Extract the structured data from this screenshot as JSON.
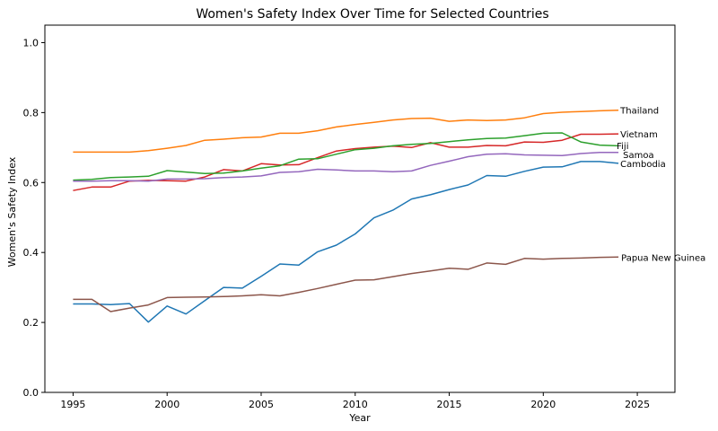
{
  "chart_data": {
    "type": "line",
    "title": "Women's Safety Index Over Time for Selected Countries",
    "xlabel": "Year",
    "ylabel": "Women's Safety Index",
    "xlim": [
      1993.5,
      2027
    ],
    "ylim": [
      0,
      1.05
    ],
    "xticks": [
      1995,
      2000,
      2005,
      2010,
      2015,
      2020,
      2025
    ],
    "yticks": [
      0.0,
      0.2,
      0.4,
      0.6,
      0.8,
      1.0
    ],
    "ytick_labels": [
      "0.0",
      "0.2",
      "0.4",
      "0.6",
      "0.8",
      "1.0"
    ],
    "x": [
      1995,
      1996,
      1997,
      1998,
      1999,
      2000,
      2001,
      2002,
      2003,
      2004,
      2005,
      2006,
      2007,
      2008,
      2009,
      2010,
      2011,
      2012,
      2013,
      2014,
      2015,
      2016,
      2017,
      2018,
      2019,
      2020,
      2021,
      2022,
      2023,
      2024
    ],
    "series": [
      {
        "name": "Thailand",
        "color": "#ff7f0e",
        "values": [
          0.687,
          0.687,
          0.687,
          0.687,
          0.691,
          0.698,
          0.706,
          0.721,
          0.724,
          0.728,
          0.73,
          0.741,
          0.741,
          0.748,
          0.759,
          0.766,
          0.772,
          0.779,
          0.783,
          0.784,
          0.775,
          0.779,
          0.777,
          0.779,
          0.785,
          0.797,
          0.801,
          0.803,
          0.805,
          0.807
        ]
      },
      {
        "name": "Vietnam",
        "color": "#d62728",
        "values": [
          0.577,
          0.587,
          0.587,
          0.604,
          0.606,
          0.605,
          0.604,
          0.616,
          0.637,
          0.633,
          0.654,
          0.65,
          0.651,
          0.671,
          0.69,
          0.697,
          0.701,
          0.704,
          0.7,
          0.714,
          0.701,
          0.701,
          0.706,
          0.705,
          0.716,
          0.715,
          0.721,
          0.738,
          0.738,
          0.739
        ]
      },
      {
        "name": "Fiji",
        "color": "#2ca02c",
        "values": [
          0.607,
          0.609,
          0.614,
          0.616,
          0.618,
          0.634,
          0.63,
          0.626,
          0.627,
          0.633,
          0.641,
          0.648,
          0.667,
          0.668,
          0.681,
          0.694,
          0.698,
          0.705,
          0.709,
          0.712,
          0.717,
          0.722,
          0.726,
          0.727,
          0.734,
          0.741,
          0.742,
          0.716,
          0.707,
          0.705
        ]
      },
      {
        "name": "Samoa",
        "color": "#9467bd",
        "values": [
          0.604,
          0.604,
          0.605,
          0.605,
          0.604,
          0.61,
          0.61,
          0.611,
          0.614,
          0.616,
          0.619,
          0.629,
          0.631,
          0.638,
          0.636,
          0.633,
          0.633,
          0.631,
          0.633,
          0.649,
          0.661,
          0.674,
          0.681,
          0.682,
          0.679,
          0.678,
          0.677,
          0.683,
          0.686,
          0.686
        ]
      },
      {
        "name": "Cambodia",
        "color": "#1f77b4",
        "values": [
          0.253,
          0.253,
          0.251,
          0.254,
          0.201,
          0.247,
          0.224,
          0.262,
          0.3,
          0.298,
          0.332,
          0.367,
          0.364,
          0.402,
          0.421,
          0.453,
          0.499,
          0.521,
          0.553,
          0.565,
          0.58,
          0.593,
          0.62,
          0.618,
          0.632,
          0.644,
          0.645,
          0.66,
          0.66,
          0.655
        ]
      },
      {
        "name": "Papua New Guinea",
        "color": "#8c564b",
        "values": [
          0.266,
          0.266,
          0.231,
          0.241,
          0.25,
          0.271,
          0.272,
          0.273,
          0.274,
          0.276,
          0.279,
          0.276,
          0.286,
          0.297,
          0.309,
          0.321,
          0.322,
          0.331,
          0.34,
          0.347,
          0.355,
          0.352,
          0.37,
          0.366,
          0.383,
          0.381,
          0.383,
          0.384,
          0.386,
          0.387
        ]
      }
    ]
  }
}
